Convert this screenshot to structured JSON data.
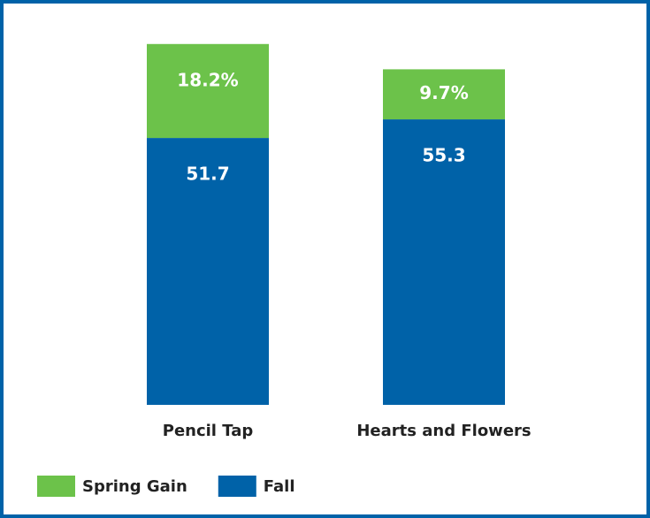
{
  "chart_data": {
    "type": "stacked-bar",
    "categories": [
      "Pencil Tap",
      "Hearts and Flowers"
    ],
    "series": [
      {
        "name": "Spring Gain",
        "color": "#6cc24a",
        "values": [
          18.2,
          9.7
        ],
        "value_labels": [
          "18.2%",
          "9.7%"
        ]
      },
      {
        "name": "Fall",
        "color": "#0062a8",
        "values": [
          51.7,
          55.3
        ]
      }
    ],
    "legend": "bottom-left"
  }
}
